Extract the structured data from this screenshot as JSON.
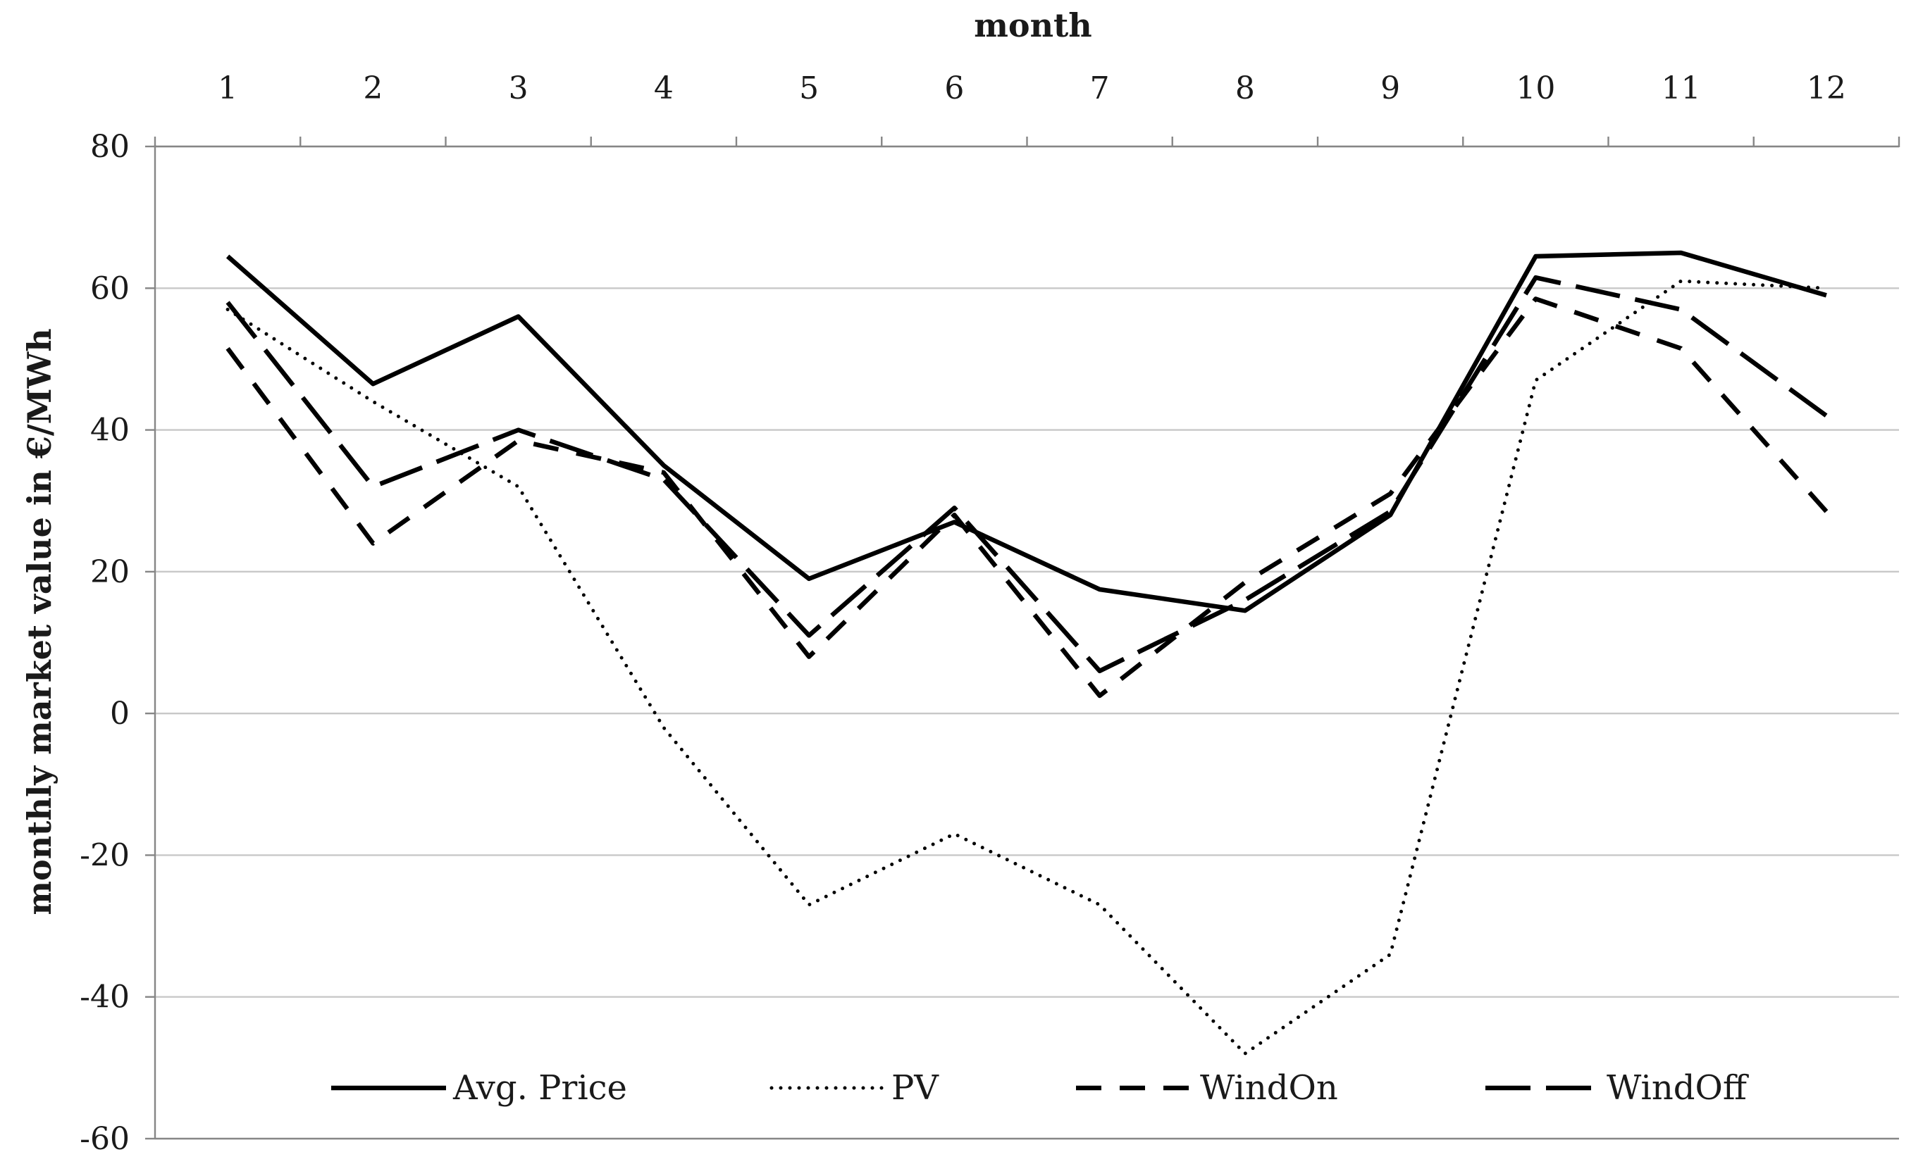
{
  "chart_data": {
    "type": "line",
    "title": "",
    "xlabel": "month",
    "ylabel": "monthly market value in €/MWh",
    "x": [
      1,
      2,
      3,
      4,
      5,
      6,
      7,
      8,
      9,
      10,
      11,
      12
    ],
    "x_tick_labels": [
      "1",
      "2",
      "3",
      "4",
      "5",
      "6",
      "7",
      "8",
      "9",
      "10",
      "11",
      "12"
    ],
    "y_ticks": [
      80,
      60,
      40,
      20,
      0,
      -20,
      -40,
      -60
    ],
    "y_tick_labels": [
      "80",
      "60",
      "40",
      "20",
      "0",
      "-20",
      "-40",
      "-60"
    ],
    "ylim": [
      -60,
      80
    ],
    "grid": true,
    "legend_position": "bottom-inside",
    "series": [
      {
        "name": "Avg. Price",
        "style": "solid",
        "values": [
          64.5,
          46.5,
          56,
          35,
          19,
          27,
          17.5,
          14.5,
          28,
          64.5,
          65,
          59
        ]
      },
      {
        "name": "PV",
        "style": "dotted",
        "values": [
          57,
          44,
          32,
          -2,
          -27,
          -17,
          -27,
          -48,
          -34,
          47,
          61,
          60
        ]
      },
      {
        "name": "WindOn",
        "style": "dashed",
        "values": [
          51.5,
          24,
          38.5,
          34,
          8,
          28,
          2.5,
          18.5,
          31,
          58.5,
          51.5,
          28.5
        ]
      },
      {
        "name": "WindOff",
        "style": "longdash",
        "values": [
          58,
          32,
          40,
          33,
          11,
          29,
          6,
          16,
          28.5,
          61.5,
          57,
          42
        ]
      }
    ]
  }
}
